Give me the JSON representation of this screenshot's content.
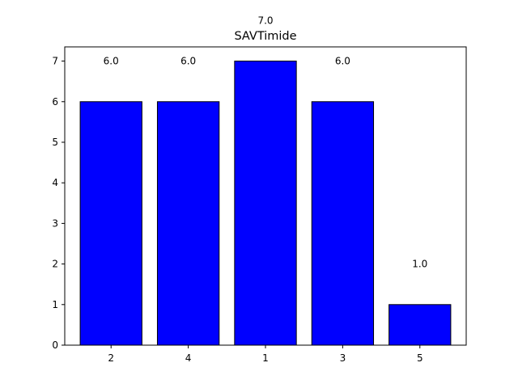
{
  "chart_data": {
    "type": "bar",
    "title": "SAVTimide",
    "xlabel": "",
    "ylabel": "",
    "categories": [
      "2",
      "4",
      "1",
      "3",
      "5"
    ],
    "values": [
      6,
      6,
      7,
      6,
      1
    ],
    "data_labels": [
      "6.0",
      "6.0",
      "7.0",
      "6.0",
      "1.0"
    ],
    "ylim": [
      0,
      7.35
    ],
    "yticks": [
      "0",
      "1",
      "2",
      "3",
      "4",
      "5",
      "6",
      "7"
    ],
    "grid": false,
    "bar_color": "#0000ff",
    "bar_edge_color": "#000000"
  }
}
